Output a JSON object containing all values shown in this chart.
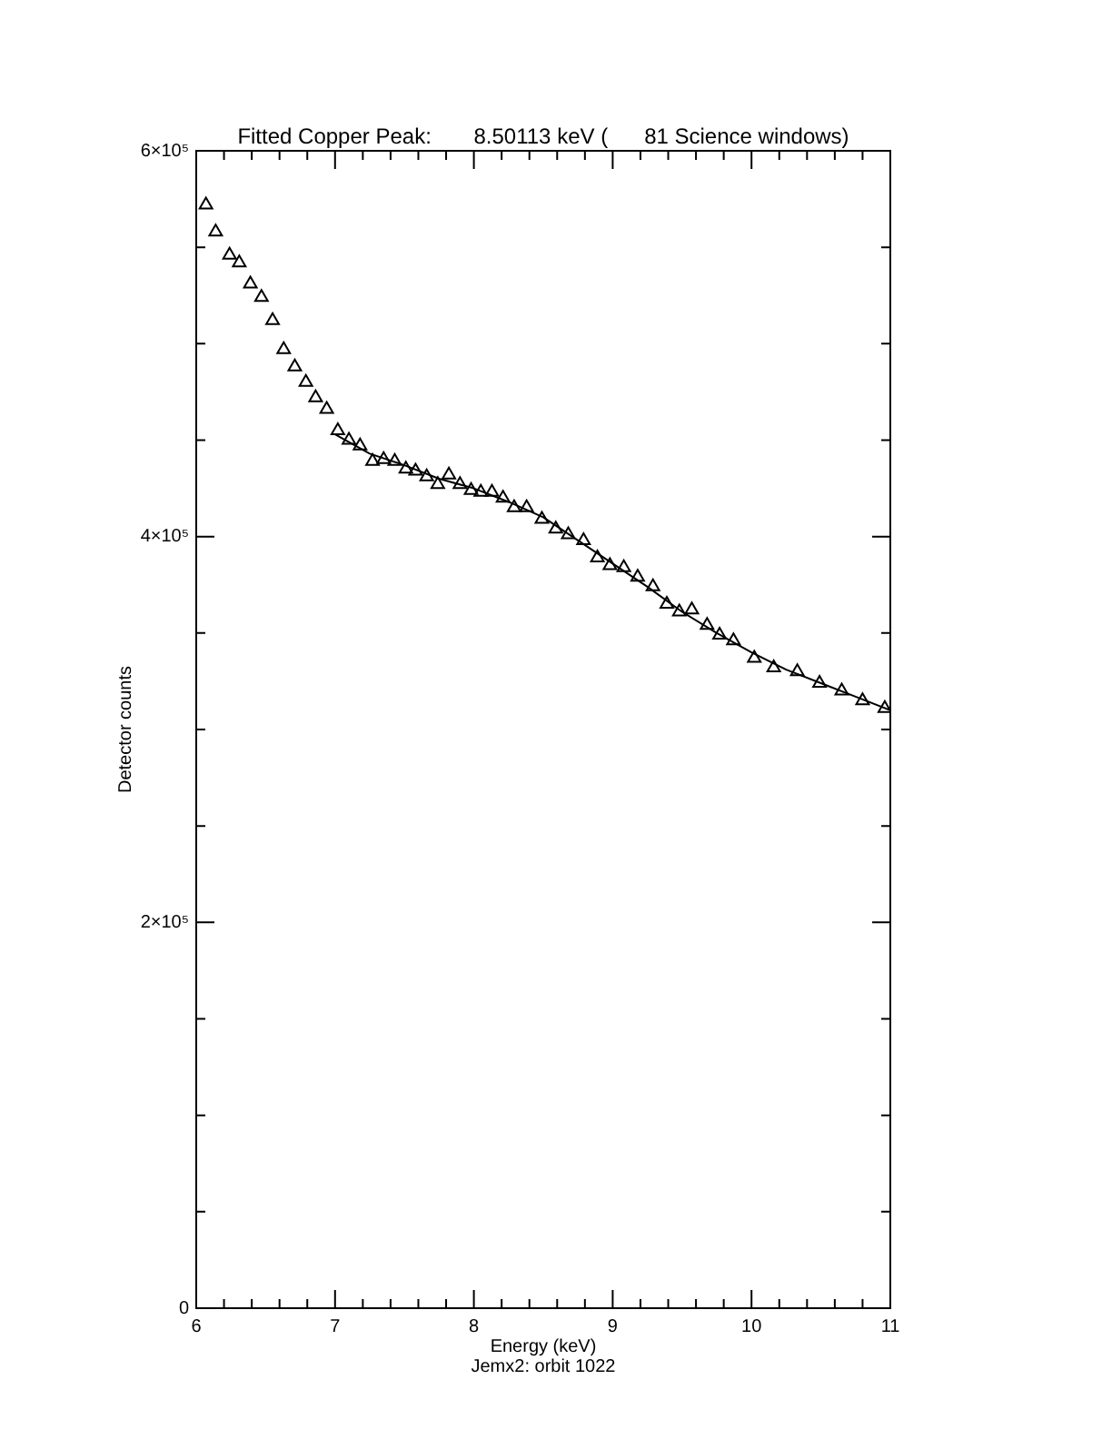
{
  "chart_data": {
    "type": "scatter",
    "title": "Fitted Copper Peak:       8.50113 keV (      81 Science windows)",
    "xlabel": "Energy (keV)",
    "ylabel": "Detector counts",
    "annotations": [
      "Jemx2: orbit 1022"
    ],
    "xlim": [
      6,
      11
    ],
    "ylim": [
      0,
      600000
    ],
    "xticks": [
      6,
      {
        "value": 6.2,
        "label": null
      },
      {
        "value": 6.4,
        "label": null
      },
      {
        "value": 6.6,
        "label": null
      },
      {
        "value": 6.8,
        "label": null
      },
      7,
      {
        "value": 7.2,
        "label": null
      },
      {
        "value": 7.4,
        "label": null
      },
      {
        "value": 7.6,
        "label": null
      },
      {
        "value": 7.8,
        "label": null
      },
      8,
      {
        "value": 8.2,
        "label": null
      },
      {
        "value": 8.4,
        "label": null
      },
      {
        "value": 8.6,
        "label": null
      },
      {
        "value": 8.8,
        "label": null
      },
      9,
      {
        "value": 9.2,
        "label": null
      },
      {
        "value": 9.4,
        "label": null
      },
      {
        "value": 9.6,
        "label": null
      },
      {
        "value": 9.8,
        "label": null
      },
      10,
      {
        "value": 10.2,
        "label": null
      },
      {
        "value": 10.4,
        "label": null
      },
      {
        "value": 10.6,
        "label": null
      },
      {
        "value": 10.8,
        "label": null
      },
      11
    ],
    "yticks": [
      0,
      {
        "value": 50000,
        "label": null
      },
      {
        "value": 100000,
        "label": null
      },
      {
        "value": 150000,
        "label": null
      },
      {
        "value": 200000,
        "label": "2×10⁵"
      },
      {
        "value": 250000,
        "label": null
      },
      {
        "value": 300000,
        "label": null
      },
      {
        "value": 350000,
        "label": null
      },
      {
        "value": 400000,
        "label": "4×10⁵"
      },
      {
        "value": 450000,
        "label": null
      },
      {
        "value": 500000,
        "label": null
      },
      {
        "value": 550000,
        "label": null
      },
      {
        "value": 600000,
        "label": "6×10⁵"
      }
    ],
    "marker": "triangle",
    "series": [
      {
        "color": "#000000",
        "x": [
          6.07,
          6.14,
          6.24,
          6.31,
          6.39,
          6.47,
          6.55,
          6.63,
          6.71,
          6.79,
          6.86,
          6.94,
          7.02,
          7.1,
          7.18,
          7.27,
          7.35,
          7.43,
          7.51,
          7.58,
          7.66,
          7.74,
          7.82,
          7.9,
          7.98,
          8.05,
          8.13,
          8.21,
          8.29,
          8.38,
          8.49,
          8.59,
          8.68,
          8.79,
          8.89,
          8.98,
          9.08,
          9.18,
          9.29,
          9.39,
          9.48,
          9.57,
          9.68,
          9.77,
          9.87,
          10.02,
          10.16,
          10.33,
          10.49,
          10.65,
          10.8,
          10.96
        ],
        "values": [
          572000,
          558000,
          546000,
          542000,
          531000,
          524000,
          512000,
          497000,
          488000,
          480000,
          472000,
          466000,
          455000,
          450000,
          447000,
          439000,
          440000,
          439000,
          435000,
          434000,
          431000,
          427000,
          432000,
          427000,
          424000,
          423000,
          423000,
          420000,
          415000,
          415000,
          409000,
          404000,
          401000,
          398000,
          389000,
          385000,
          384000,
          379000,
          374000,
          365000,
          361000,
          362000,
          354000,
          349000,
          346000,
          337000,
          332000,
          330000,
          324000,
          320000,
          315000,
          311000
        ]
      },
      {
        "type": "line",
        "color": "#000000",
        "marker": "none",
        "x": [
          7.0,
          7.25,
          7.5,
          7.75,
          8.0,
          8.25,
          8.5,
          8.75,
          9.0,
          9.25,
          9.5,
          9.75,
          10.0,
          10.25,
          10.5,
          10.75,
          11.0
        ],
        "values": [
          453000,
          443000,
          437000,
          430000,
          425000,
          418000,
          410000,
          398000,
          386000,
          374000,
          361000,
          350000,
          340000,
          331000,
          324000,
          317000,
          310000
        ]
      }
    ]
  }
}
